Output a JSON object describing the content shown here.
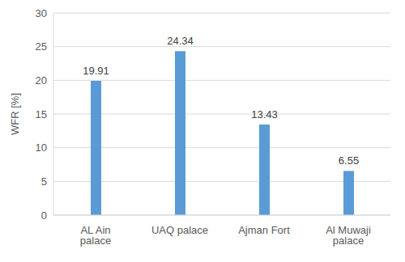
{
  "chart_data": {
    "type": "bar",
    "y_label": "WFR [%]",
    "categories": [
      "AL Ain palace",
      "UAQ palace",
      "Ajman Fort",
      "Al Muwaji palace"
    ],
    "values": [
      19.91,
      24.34,
      13.43,
      6.55
    ],
    "color": "#5b9bd5",
    "ylim": [
      0,
      30
    ],
    "yticks": [
      0,
      5,
      10,
      15,
      20,
      25,
      30
    ],
    "grid": true,
    "data_labels": true
  }
}
